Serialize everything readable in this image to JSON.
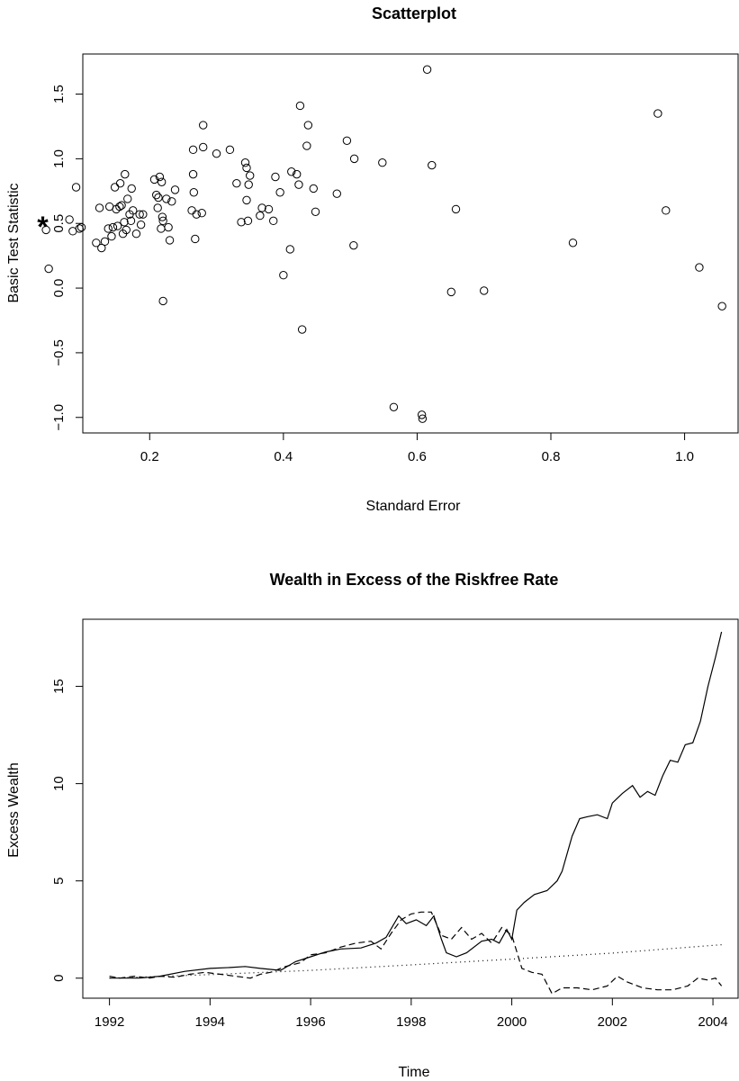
{
  "chart_data": [
    {
      "type": "scatter",
      "title": "Scatterplot",
      "xlabel": "Standard Error",
      "ylabel": "Basic Test Statistic",
      "xlim": [
        0.1,
        1.08
      ],
      "ylim": [
        -1.12,
        1.81
      ],
      "xticks": [
        0.2,
        0.4,
        0.6,
        0.8,
        1.0
      ],
      "xtick_labels": [
        "0.2",
        "0.4",
        "0.6",
        "0.8",
        "1.0"
      ],
      "yticks": [
        -1.0,
        -0.5,
        0.0,
        0.5,
        1.0,
        1.5
      ],
      "ytick_labels": [
        "−1.0",
        "−0.5",
        "0.0",
        "0.5",
        "1.0",
        "1.5"
      ],
      "marker": "open-circle",
      "highlight": {
        "label": "*",
        "x": 0.04,
        "y": 0.5
      },
      "points": [
        [
          0.045,
          0.45
        ],
        [
          0.049,
          0.15
        ],
        [
          0.08,
          0.53
        ],
        [
          0.085,
          0.44
        ],
        [
          0.09,
          0.78
        ],
        [
          0.095,
          0.46
        ],
        [
          0.098,
          0.47
        ],
        [
          0.12,
          0.35
        ],
        [
          0.125,
          0.62
        ],
        [
          0.128,
          0.31
        ],
        [
          0.133,
          0.36
        ],
        [
          0.138,
          0.46
        ],
        [
          0.14,
          0.63
        ],
        [
          0.143,
          0.4
        ],
        [
          0.145,
          0.47
        ],
        [
          0.148,
          0.78
        ],
        [
          0.15,
          0.61
        ],
        [
          0.152,
          0.48
        ],
        [
          0.155,
          0.63
        ],
        [
          0.156,
          0.81
        ],
        [
          0.158,
          0.64
        ],
        [
          0.16,
          0.42
        ],
        [
          0.162,
          0.51
        ],
        [
          0.163,
          0.88
        ],
        [
          0.165,
          0.45
        ],
        [
          0.167,
          0.69
        ],
        [
          0.17,
          0.57
        ],
        [
          0.172,
          0.52
        ],
        [
          0.173,
          0.77
        ],
        [
          0.175,
          0.6
        ],
        [
          0.18,
          0.42
        ],
        [
          0.185,
          0.57
        ],
        [
          0.187,
          0.49
        ],
        [
          0.19,
          0.57
        ],
        [
          0.207,
          0.84
        ],
        [
          0.21,
          0.72
        ],
        [
          0.212,
          0.62
        ],
        [
          0.213,
          0.7
        ],
        [
          0.215,
          0.86
        ],
        [
          0.217,
          0.46
        ],
        [
          0.218,
          0.82
        ],
        [
          0.219,
          0.55
        ],
        [
          0.22,
          0.52
        ],
        [
          0.22,
          -0.1
        ],
        [
          0.225,
          0.69
        ],
        [
          0.228,
          0.47
        ],
        [
          0.23,
          0.37
        ],
        [
          0.233,
          0.67
        ],
        [
          0.238,
          0.76
        ],
        [
          0.263,
          0.6
        ],
        [
          0.265,
          1.07
        ],
        [
          0.265,
          0.88
        ],
        [
          0.266,
          0.74
        ],
        [
          0.268,
          0.38
        ],
        [
          0.27,
          0.57
        ],
        [
          0.278,
          0.58
        ],
        [
          0.28,
          1.26
        ],
        [
          0.28,
          1.09
        ],
        [
          0.3,
          1.04
        ],
        [
          0.32,
          1.07
        ],
        [
          0.33,
          0.81
        ],
        [
          0.337,
          0.51
        ],
        [
          0.343,
          0.97
        ],
        [
          0.345,
          0.93
        ],
        [
          0.345,
          0.68
        ],
        [
          0.347,
          0.52
        ],
        [
          0.348,
          0.8
        ],
        [
          0.35,
          0.87
        ],
        [
          0.365,
          0.56
        ],
        [
          0.368,
          0.62
        ],
        [
          0.378,
          0.61
        ],
        [
          0.385,
          0.52
        ],
        [
          0.388,
          0.86
        ],
        [
          0.395,
          0.74
        ],
        [
          0.4,
          0.1
        ],
        [
          0.41,
          0.3
        ],
        [
          0.412,
          0.9
        ],
        [
          0.42,
          0.88
        ],
        [
          0.423,
          0.8
        ],
        [
          0.425,
          1.41
        ],
        [
          0.428,
          -0.32
        ],
        [
          0.435,
          1.1
        ],
        [
          0.437,
          1.26
        ],
        [
          0.445,
          0.77
        ],
        [
          0.448,
          0.59
        ],
        [
          0.48,
          0.73
        ],
        [
          0.495,
          1.14
        ],
        [
          0.505,
          0.33
        ],
        [
          0.506,
          1.0
        ],
        [
          0.548,
          0.97
        ],
        [
          0.565,
          -0.92
        ],
        [
          0.607,
          -0.98
        ],
        [
          0.608,
          -1.01
        ],
        [
          0.615,
          1.69
        ],
        [
          0.622,
          0.95
        ],
        [
          0.651,
          -0.03
        ],
        [
          0.658,
          0.61
        ],
        [
          0.7,
          -0.02
        ],
        [
          0.833,
          0.35
        ],
        [
          0.96,
          1.35
        ],
        [
          0.972,
          0.6
        ],
        [
          1.022,
          0.16
        ],
        [
          1.056,
          -0.14
        ]
      ]
    },
    {
      "type": "line",
      "title": "Wealth in Excess of the Riskfree Rate",
      "xlabel": "Time",
      "ylabel": "Excess Wealth",
      "xlim": [
        1991.47,
        2004.5
      ],
      "ylim": [
        -1.03,
        18.45
      ],
      "xticks": [
        1992,
        1994,
        1996,
        1998,
        2000,
        2002,
        2004
      ],
      "xtick_labels": [
        "1992",
        "1994",
        "1996",
        "1998",
        "2000",
        "2002",
        "2004"
      ],
      "yticks": [
        0,
        5,
        10,
        15
      ],
      "ytick_labels": [
        "0",
        "5",
        "10",
        "15"
      ],
      "series": [
        {
          "style": "solid",
          "points": [
            [
              1992.0,
              0.0
            ],
            [
              1992.3,
              0.0
            ],
            [
              1992.6,
              0.0
            ],
            [
              1993.0,
              0.1
            ],
            [
              1993.5,
              0.35
            ],
            [
              1994.0,
              0.5
            ],
            [
              1994.4,
              0.55
            ],
            [
              1994.7,
              0.6
            ],
            [
              1995.0,
              0.5
            ],
            [
              1995.4,
              0.4
            ],
            [
              1995.7,
              0.85
            ],
            [
              1996.0,
              1.1
            ],
            [
              1996.3,
              1.35
            ],
            [
              1996.6,
              1.5
            ],
            [
              1997.0,
              1.55
            ],
            [
              1997.3,
              1.8
            ],
            [
              1997.5,
              2.1
            ],
            [
              1997.75,
              3.2
            ],
            [
              1997.9,
              2.8
            ],
            [
              1998.1,
              3.0
            ],
            [
              1998.3,
              2.7
            ],
            [
              1998.45,
              3.2
            ],
            [
              1998.6,
              2.0
            ],
            [
              1998.7,
              1.3
            ],
            [
              1998.9,
              1.1
            ],
            [
              1999.1,
              1.3
            ],
            [
              1999.4,
              1.9
            ],
            [
              1999.6,
              2.0
            ],
            [
              1999.75,
              1.8
            ],
            [
              1999.9,
              2.5
            ],
            [
              2000.0,
              2.0
            ],
            [
              2000.1,
              3.5
            ],
            [
              2000.25,
              3.9
            ],
            [
              2000.45,
              4.3
            ],
            [
              2000.7,
              4.5
            ],
            [
              2000.9,
              5.0
            ],
            [
              2001.0,
              5.5
            ],
            [
              2001.2,
              7.3
            ],
            [
              2001.35,
              8.2
            ],
            [
              2001.5,
              8.3
            ],
            [
              2001.7,
              8.4
            ],
            [
              2001.9,
              8.2
            ],
            [
              2002.0,
              9.0
            ],
            [
              2002.2,
              9.5
            ],
            [
              2002.4,
              9.9
            ],
            [
              2002.55,
              9.3
            ],
            [
              2002.7,
              9.6
            ],
            [
              2002.85,
              9.4
            ],
            [
              2003.0,
              10.4
            ],
            [
              2003.15,
              11.2
            ],
            [
              2003.3,
              11.1
            ],
            [
              2003.45,
              12.0
            ],
            [
              2003.6,
              12.1
            ],
            [
              2003.75,
              13.2
            ],
            [
              2003.9,
              15.0
            ],
            [
              2004.05,
              16.5
            ],
            [
              2004.17,
              17.8
            ]
          ]
        },
        {
          "style": "dashed",
          "points": [
            [
              1992.0,
              0.1
            ],
            [
              1992.2,
              0.0
            ],
            [
              1992.5,
              0.1
            ],
            [
              1992.8,
              0.0
            ],
            [
              1993.0,
              0.1
            ],
            [
              1993.3,
              0.05
            ],
            [
              1993.6,
              0.2
            ],
            [
              1993.9,
              0.3
            ],
            [
              1994.2,
              0.2
            ],
            [
              1994.5,
              0.1
            ],
            [
              1994.8,
              0.0
            ],
            [
              1995.0,
              0.2
            ],
            [
              1995.2,
              0.3
            ],
            [
              1995.5,
              0.6
            ],
            [
              1995.8,
              0.8
            ],
            [
              1996.0,
              1.2
            ],
            [
              1996.3,
              1.3
            ],
            [
              1996.6,
              1.6
            ],
            [
              1996.9,
              1.8
            ],
            [
              1997.2,
              1.9
            ],
            [
              1997.4,
              1.5
            ],
            [
              1997.6,
              2.3
            ],
            [
              1997.8,
              3.0
            ],
            [
              1998.0,
              3.3
            ],
            [
              1998.2,
              3.4
            ],
            [
              1998.4,
              3.4
            ],
            [
              1998.6,
              2.2
            ],
            [
              1998.8,
              2.0
            ],
            [
              1999.0,
              2.6
            ],
            [
              1999.2,
              2.0
            ],
            [
              1999.4,
              2.3
            ],
            [
              1999.6,
              1.8
            ],
            [
              1999.8,
              2.6
            ],
            [
              2000.0,
              2.2
            ],
            [
              2000.2,
              0.5
            ],
            [
              2000.4,
              0.3
            ],
            [
              2000.6,
              0.2
            ],
            [
              2000.8,
              -0.8
            ],
            [
              2001.0,
              -0.5
            ],
            [
              2001.3,
              -0.5
            ],
            [
              2001.6,
              -0.6
            ],
            [
              2001.9,
              -0.4
            ],
            [
              2002.1,
              0.1
            ],
            [
              2002.3,
              -0.2
            ],
            [
              2002.6,
              -0.5
            ],
            [
              2002.9,
              -0.6
            ],
            [
              2003.2,
              -0.6
            ],
            [
              2003.5,
              -0.4
            ],
            [
              2003.7,
              0.0
            ],
            [
              2003.9,
              -0.1
            ],
            [
              2004.05,
              0.0
            ],
            [
              2004.17,
              -0.4
            ]
          ]
        },
        {
          "style": "dotted",
          "points": [
            [
              1992.0,
              0.0
            ],
            [
              1994.0,
              0.18
            ],
            [
              1996.0,
              0.4
            ],
            [
              1998.0,
              0.68
            ],
            [
              2000.0,
              0.98
            ],
            [
              2002.0,
              1.29
            ],
            [
              2004.17,
              1.72
            ]
          ]
        }
      ]
    }
  ]
}
